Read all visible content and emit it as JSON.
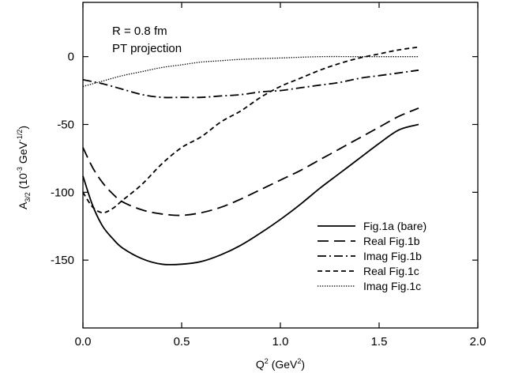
{
  "chart_data": {
    "type": "line",
    "xlabel": {
      "main": "Q",
      "sup": "2",
      "rest": " (GeV",
      "sup2": "2",
      "end": ")"
    },
    "ylabel": {
      "main": "A",
      "sub": "3/2",
      "rest": " (10",
      "sup": "-3",
      "mid": " GeV",
      "sup2": "-1/2",
      "end": ")"
    },
    "xlim": [
      0.0,
      2.0
    ],
    "ylim": [
      -200,
      40
    ],
    "xticks": [
      0.0,
      0.5,
      1.0,
      1.5,
      2.0
    ],
    "xtick_labels": [
      "0.0",
      "0.5",
      "1.0",
      "1.5",
      "2.0"
    ],
    "yticks": [
      -150,
      -100,
      -50,
      0
    ],
    "ytick_labels": [
      "-150",
      "-100",
      "-50",
      "0"
    ],
    "annotations": [
      "R = 0.8 fm",
      "PT projection"
    ],
    "legend_position": "lower-right",
    "grid": false,
    "series": [
      {
        "name": "Fig.1a (bare)",
        "dash": "solid",
        "x": [
          0.0,
          0.05,
          0.1,
          0.15,
          0.2,
          0.3,
          0.4,
          0.5,
          0.6,
          0.7,
          0.8,
          0.9,
          1.0,
          1.1,
          1.2,
          1.3,
          1.4,
          1.5,
          1.6,
          1.7
        ],
        "y": [
          -88,
          -110,
          -125,
          -134,
          -141,
          -149,
          -153,
          -153,
          -151,
          -146,
          -139,
          -130,
          -120,
          -109,
          -97,
          -86,
          -75,
          -64,
          -54,
          -50
        ]
      },
      {
        "name": "Real Fig.1b",
        "dash": "longdash",
        "x": [
          0.0,
          0.05,
          0.1,
          0.15,
          0.2,
          0.3,
          0.4,
          0.5,
          0.6,
          0.7,
          0.8,
          0.9,
          1.0,
          1.1,
          1.2,
          1.3,
          1.4,
          1.5,
          1.6,
          1.7
        ],
        "y": [
          -67,
          -82,
          -93,
          -101,
          -107,
          -113,
          -116,
          -117,
          -115,
          -111,
          -105,
          -98,
          -91,
          -84,
          -76,
          -68,
          -60,
          -52,
          -44,
          -38
        ]
      },
      {
        "name": "Imag Fig.1b",
        "dash": "dashdot",
        "x": [
          0.0,
          0.1,
          0.2,
          0.3,
          0.4,
          0.5,
          0.6,
          0.7,
          0.8,
          0.9,
          1.0,
          1.1,
          1.2,
          1.3,
          1.4,
          1.5,
          1.6,
          1.7
        ],
        "y": [
          -17,
          -20,
          -24,
          -28,
          -30,
          -30,
          -30,
          -29,
          -28,
          -26,
          -25,
          -23,
          -21,
          -19,
          -16,
          -14,
          -12,
          -10
        ]
      },
      {
        "name": "Real Fig.1c",
        "dash": "shortdash",
        "x": [
          0.0,
          0.05,
          0.1,
          0.15,
          0.2,
          0.3,
          0.4,
          0.5,
          0.6,
          0.7,
          0.8,
          0.9,
          1.0,
          1.1,
          1.2,
          1.3,
          1.4,
          1.5,
          1.6,
          1.7
        ],
        "y": [
          -100,
          -111,
          -115,
          -112,
          -106,
          -94,
          -79,
          -67,
          -59,
          -48,
          -40,
          -30,
          -22,
          -16,
          -10,
          -5,
          -1,
          2,
          5,
          7
        ]
      },
      {
        "name": "Imag Fig.1c",
        "dash": "dotted",
        "x": [
          0.0,
          0.05,
          0.1,
          0.2,
          0.3,
          0.4,
          0.5,
          0.6,
          0.7,
          0.8,
          1.0,
          1.2,
          1.4,
          1.6,
          1.7
        ],
        "y": [
          -22,
          -20,
          -18,
          -14,
          -11,
          -8,
          -6,
          -4,
          -3,
          -2,
          -1,
          0,
          0,
          0,
          0
        ]
      }
    ]
  }
}
